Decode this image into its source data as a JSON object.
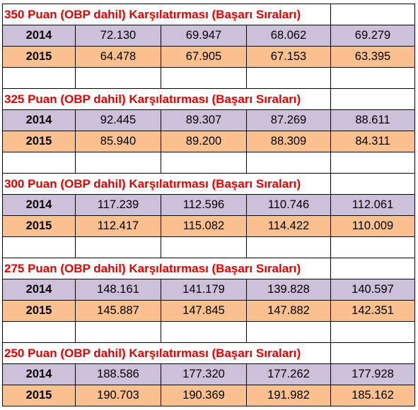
{
  "sections": [
    {
      "title": "350 Puan (OBP dahil) Karşılatırması  (Başarı Sıraları)",
      "rows": [
        {
          "year": "2014",
          "values": [
            "72.130",
            "69.947",
            "68.062",
            "69.279"
          ]
        },
        {
          "year": "2015",
          "values": [
            "64.478",
            "67.905",
            "67.153",
            "63.395"
          ]
        }
      ]
    },
    {
      "title": "325 Puan (OBP dahil) Karşılatırması  (Başarı Sıraları)",
      "rows": [
        {
          "year": "2014",
          "values": [
            "92.445",
            "89.307",
            "87.269",
            "88.611"
          ]
        },
        {
          "year": "2015",
          "values": [
            "85.940",
            "89.200",
            "88.309",
            "84.311"
          ]
        }
      ]
    },
    {
      "title": "300 Puan (OBP dahil) Karşılatırması  (Başarı Sıraları)",
      "rows": [
        {
          "year": "2014",
          "values": [
            "117.239",
            "112.596",
            "110.746",
            "112.061"
          ]
        },
        {
          "year": "2015",
          "values": [
            "112.417",
            "115.082",
            "114.422",
            "110.009"
          ]
        }
      ]
    },
    {
      "title": "275 Puan (OBP dahil) Karşılatırması  (Başarı Sıraları)",
      "rows": [
        {
          "year": "2014",
          "values": [
            "148.161",
            "141.179",
            "139.828",
            "140.597"
          ]
        },
        {
          "year": "2015",
          "values": [
            "145.887",
            "147.845",
            "147.882",
            "142.351"
          ]
        }
      ]
    },
    {
      "title": "250 Puan (OBP dahil) Karşılatırması  (Başarı Sıraları)",
      "rows": [
        {
          "year": "2014",
          "values": [
            "188.586",
            "177.320",
            "177.262",
            "177.928"
          ]
        },
        {
          "year": "2015",
          "values": [
            "190.703",
            "190.369",
            "191.982",
            "185.162"
          ]
        }
      ]
    }
  ],
  "colors": {
    "title_red": "#e30000",
    "row_2014": "#ccc0da",
    "row_2015": "#fac090"
  }
}
